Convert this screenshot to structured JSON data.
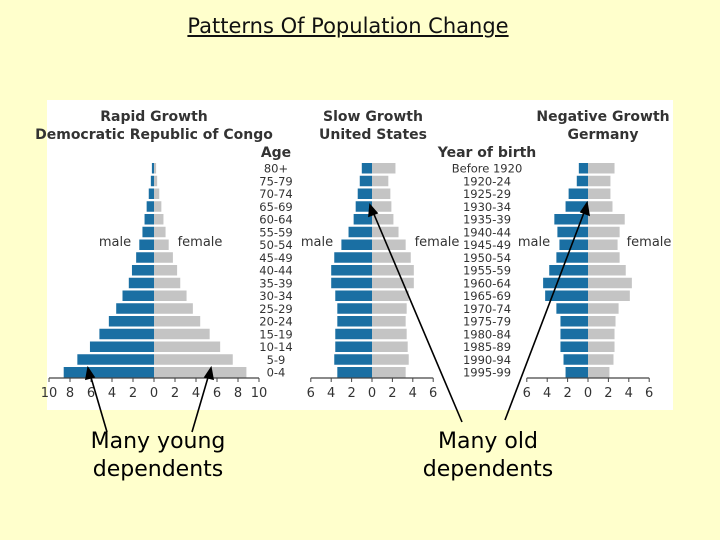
{
  "title": "Patterns Of Population Change",
  "captions": {
    "young": "Many young dependents",
    "old": "Many old dependents"
  },
  "colors": {
    "page_bg": "#ffffcc",
    "male": "#1a6fa3",
    "female": "#c4c4c4",
    "text": "#222222"
  },
  "age_heading": "Age",
  "birth_heading": "Year of birth",
  "sex_labels": {
    "male": "male",
    "female": "female"
  },
  "age_groups": [
    "80+",
    "75-79",
    "70-74",
    "65-69",
    "60-64",
    "55-59",
    "50-54",
    "45-49",
    "40-44",
    "35-39",
    "30-34",
    "25-29",
    "20-24",
    "15-19",
    "10-14",
    "5-9",
    "0-4"
  ],
  "birth_years": [
    "Before 1920",
    "1920-24",
    "1925-29",
    "1930-34",
    "1935-39",
    "1940-44",
    "1945-49",
    "1950-54",
    "1955-59",
    "1960-64",
    "1965-69",
    "1970-74",
    "1975-79",
    "1980-84",
    "1985-89",
    "1990-94",
    "1995-99"
  ],
  "chart_data": [
    {
      "type": "bar",
      "title": "Rapid Growth",
      "subtitle": "Democratic Republic of Congo",
      "xlim": [
        -10,
        10
      ],
      "xticks": [
        "10",
        "8",
        "6",
        "4",
        "2",
        "0",
        "2",
        "4",
        "6",
        "8",
        "10"
      ],
      "categories": [
        "80+",
        "75-79",
        "70-74",
        "65-69",
        "60-64",
        "55-59",
        "50-54",
        "45-49",
        "40-44",
        "35-39",
        "30-34",
        "25-29",
        "20-24",
        "15-19",
        "10-14",
        "5-9",
        "0-4"
      ],
      "series": [
        {
          "name": "male",
          "values": [
            0.2,
            0.3,
            0.5,
            0.7,
            0.9,
            1.1,
            1.4,
            1.7,
            2.1,
            2.4,
            3.0,
            3.6,
            4.3,
            5.2,
            6.1,
            7.3,
            8.6
          ]
        },
        {
          "name": "female",
          "values": [
            0.2,
            0.3,
            0.5,
            0.7,
            0.9,
            1.1,
            1.4,
            1.8,
            2.2,
            2.5,
            3.1,
            3.7,
            4.4,
            5.3,
            6.3,
            7.5,
            8.8
          ]
        }
      ]
    },
    {
      "type": "bar",
      "title": "Slow Growth",
      "subtitle": "United States",
      "xlim": [
        -6,
        6
      ],
      "xticks": [
        "6",
        "4",
        "2",
        "0",
        "2",
        "4",
        "6"
      ],
      "categories": [
        "80+",
        "75-79",
        "70-74",
        "65-69",
        "60-64",
        "55-59",
        "50-54",
        "45-49",
        "40-44",
        "35-39",
        "30-34",
        "25-29",
        "20-24",
        "15-19",
        "10-14",
        "5-9",
        "0-4"
      ],
      "series": [
        {
          "name": "male",
          "values": [
            1.0,
            1.2,
            1.4,
            1.6,
            1.8,
            2.3,
            3.0,
            3.7,
            4.0,
            4.0,
            3.6,
            3.4,
            3.4,
            3.6,
            3.6,
            3.7,
            3.4
          ]
        },
        {
          "name": "female",
          "values": [
            2.3,
            1.6,
            1.8,
            1.9,
            2.1,
            2.6,
            3.3,
            3.8,
            4.1,
            4.1,
            3.6,
            3.4,
            3.3,
            3.4,
            3.5,
            3.6,
            3.3
          ]
        }
      ]
    },
    {
      "type": "bar",
      "title": "Negative Growth",
      "subtitle": "Germany",
      "xlim": [
        -6,
        6
      ],
      "xticks": [
        "6",
        "4",
        "2",
        "0",
        "2",
        "4",
        "6"
      ],
      "categories": [
        "80+",
        "75-79",
        "70-74",
        "65-69",
        "60-64",
        "55-59",
        "50-54",
        "45-49",
        "40-44",
        "35-39",
        "30-34",
        "25-29",
        "20-24",
        "15-19",
        "10-14",
        "5-9",
        "0-4"
      ],
      "series": [
        {
          "name": "male",
          "values": [
            0.9,
            1.1,
            1.9,
            2.2,
            3.3,
            3.0,
            2.8,
            3.1,
            3.8,
            4.4,
            4.2,
            3.1,
            2.7,
            2.7,
            2.7,
            2.4,
            2.2
          ]
        },
        {
          "name": "female",
          "values": [
            2.6,
            2.2,
            2.2,
            2.4,
            3.6,
            3.1,
            2.9,
            3.1,
            3.7,
            4.3,
            4.1,
            3.0,
            2.7,
            2.6,
            2.6,
            2.5,
            2.1
          ]
        }
      ]
    }
  ]
}
